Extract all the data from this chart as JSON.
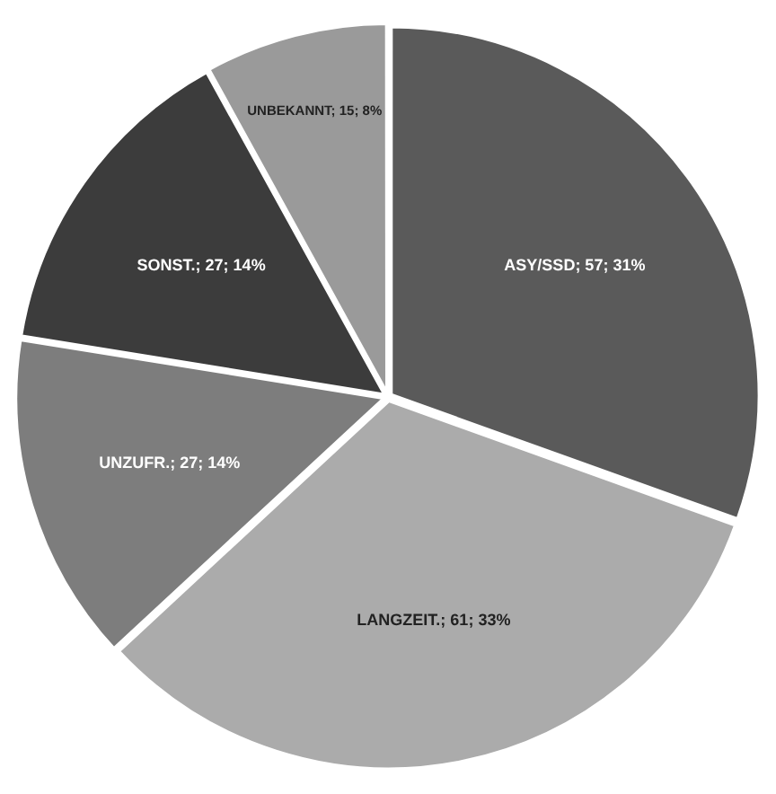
{
  "chart_data": {
    "type": "pie",
    "categories": [
      "ASY/SSD",
      "LANGZEIT.",
      "UNZUFR.",
      "SONST.",
      "UNBEKANNT"
    ],
    "values": [
      57,
      61,
      27,
      27,
      15
    ],
    "value_labels": [
      "57; 31%",
      "61; 33%",
      "27; 14%",
      "27; 14%",
      "15; 8%"
    ],
    "colors": [
      "#5a5a5a",
      "#ababab",
      "#7d7d7d",
      "#3c3c3c",
      "#9a9a9a"
    ],
    "data_labels": true,
    "legend": false
  }
}
